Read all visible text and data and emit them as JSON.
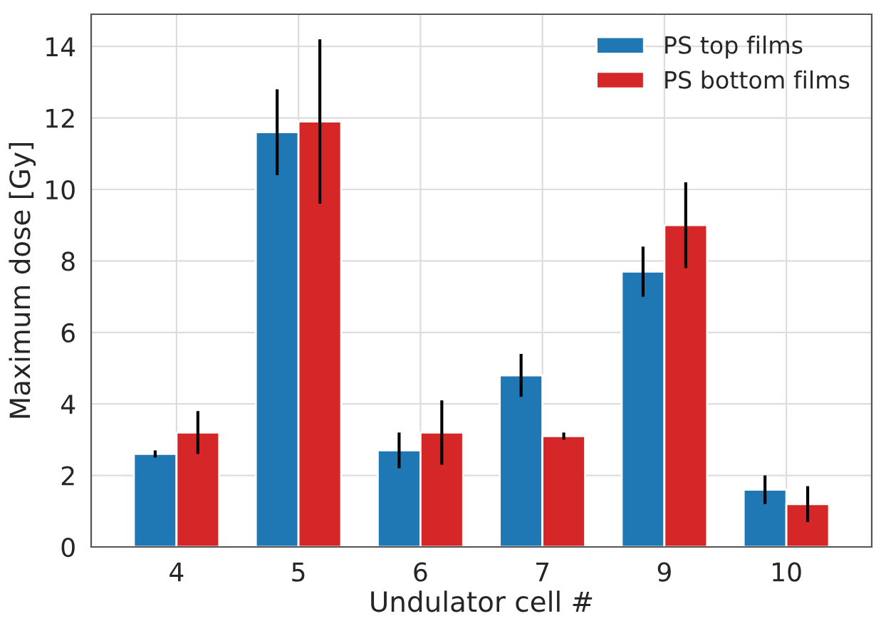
{
  "chart_data": {
    "type": "bar",
    "xlabel": "Undulator cell #",
    "ylabel": "Maximum dose [Gy]",
    "categories": [
      "4",
      "5",
      "6",
      "7",
      "9",
      "10"
    ],
    "series": [
      {
        "name": "PS top films",
        "color": "#1f77b4",
        "values": [
          2.6,
          11.6,
          2.7,
          4.8,
          7.7,
          1.6
        ],
        "errors": [
          0.1,
          1.2,
          0.5,
          0.6,
          0.7,
          0.4
        ]
      },
      {
        "name": "PS bottom films",
        "color": "#d62728",
        "values": [
          3.2,
          11.9,
          3.2,
          3.1,
          9.0,
          1.2
        ],
        "errors": [
          0.6,
          2.3,
          0.9,
          0.1,
          1.2,
          0.5
        ]
      }
    ],
    "ylim": [
      0,
      14.9
    ],
    "yticks": [
      0,
      2,
      4,
      6,
      8,
      10,
      12,
      14
    ],
    "grid": true,
    "legend": "top right"
  }
}
